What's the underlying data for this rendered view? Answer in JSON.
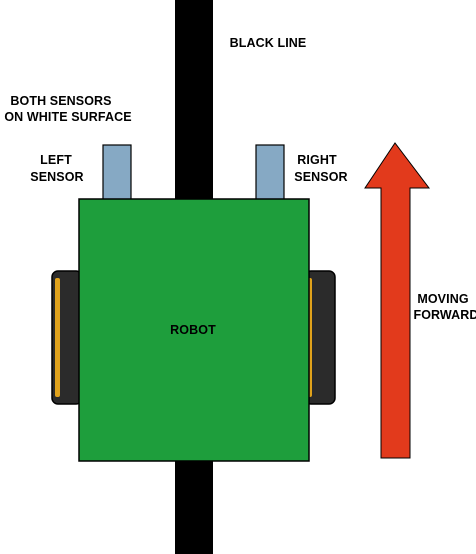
{
  "labels": {
    "black_line": "BLACK LINE",
    "both_sensors_line1": "BOTH SENSORS",
    "both_sensors_line2": "ON WHITE SURFACE",
    "left_sensor_line1": "LEFT",
    "left_sensor_line2": "SENSOR",
    "right_sensor_line1": "RIGHT",
    "right_sensor_line2": "SENSOR",
    "robot": "ROBOT",
    "moving_line1": "MOVING",
    "moving_line2": "FORWARD"
  },
  "colors": {
    "background": "#ffffff",
    "black_line": "#000000",
    "robot_body": "#1e9e3c",
    "sensor": "#86a9c4",
    "wheel": "#2b2b2b",
    "wheel_rim": "#e0a21b",
    "arrow": "#e23a1c"
  }
}
